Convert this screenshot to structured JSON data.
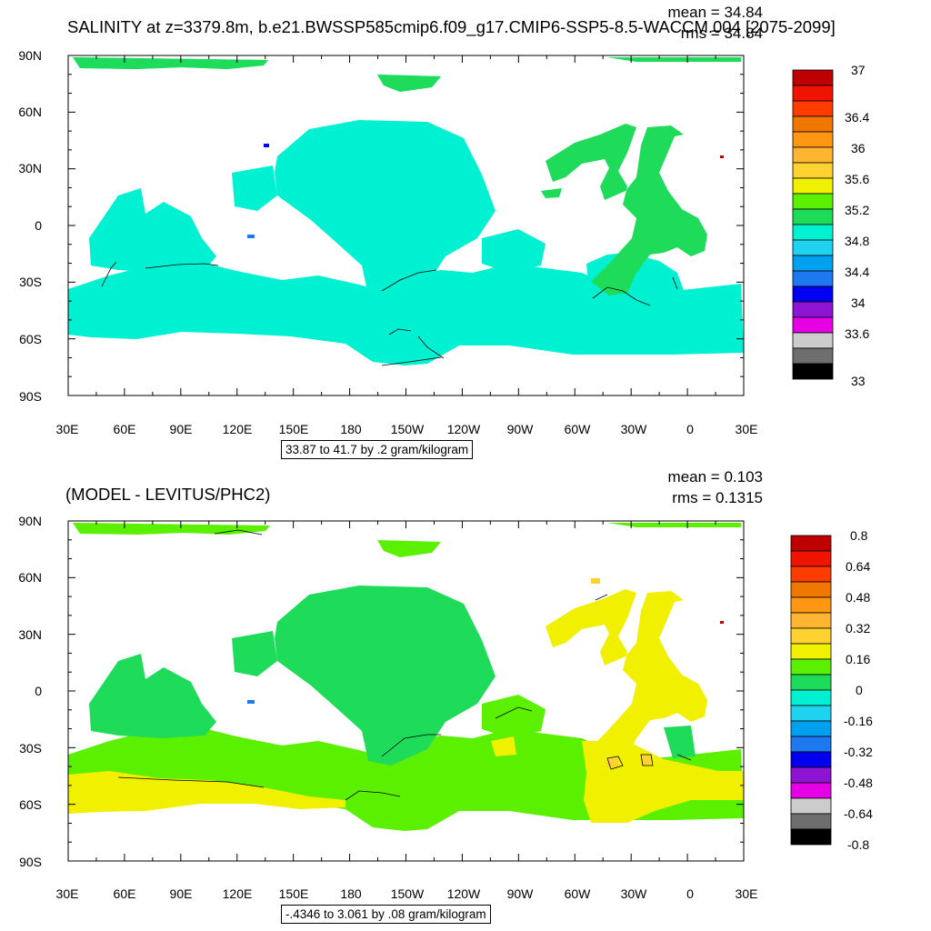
{
  "top": {
    "title": "SALINITY at z=3379.8m, b.e21.BWSSP585cmip6.f09_g17.CMIP6-SSP5-8.5-WACCM.004 [2075-2099]",
    "mean": "mean = 34.84",
    "rms": "rms = 34.84",
    "info": "33.87 to 41.7 by .2 gram/kilogram",
    "colorbar": {
      "labels": [
        "37",
        "36.4",
        "36",
        "35.6",
        "35.2",
        "34.8",
        "34.4",
        "34",
        "33.6",
        "33"
      ]
    }
  },
  "bottom": {
    "title": "(MODEL - LEVITUS/PHC2)",
    "mean": "mean = 0.103",
    "rms": "rms = 0.1315",
    "info": "-.4346 to 3.061 by .08 gram/kilogram",
    "colorbar": {
      "labels": [
        "0.8",
        "0.64",
        "0.48",
        "0.32",
        "0.16",
        "0",
        "-0.16",
        "-0.32",
        "-0.48",
        "-0.64",
        "-0.8"
      ]
    }
  },
  "axes": {
    "lat_labels": [
      "90N",
      "60N",
      "30N",
      "0",
      "30S",
      "60S",
      "90S"
    ],
    "lon_labels": [
      "30E",
      "60E",
      "90E",
      "120E",
      "150E",
      "180",
      "150W",
      "120W",
      "90W",
      "60W",
      "30W",
      "0",
      "30E"
    ]
  },
  "colors": {
    "palette": [
      "#6e6e6e",
      "#cccccc",
      "#e600e6",
      "#8c14d2",
      "#0000f0",
      "#1e78f0",
      "#00a0f0",
      "#1ed2f0",
      "#00f0d2",
      "#1edc5a",
      "#5af000",
      "#f0f000",
      "#ffd232",
      "#ffb432",
      "#ff9614",
      "#f07800",
      "#ff3c00",
      "#f01400",
      "#be0000"
    ],
    "land": "#ffffff"
  }
}
